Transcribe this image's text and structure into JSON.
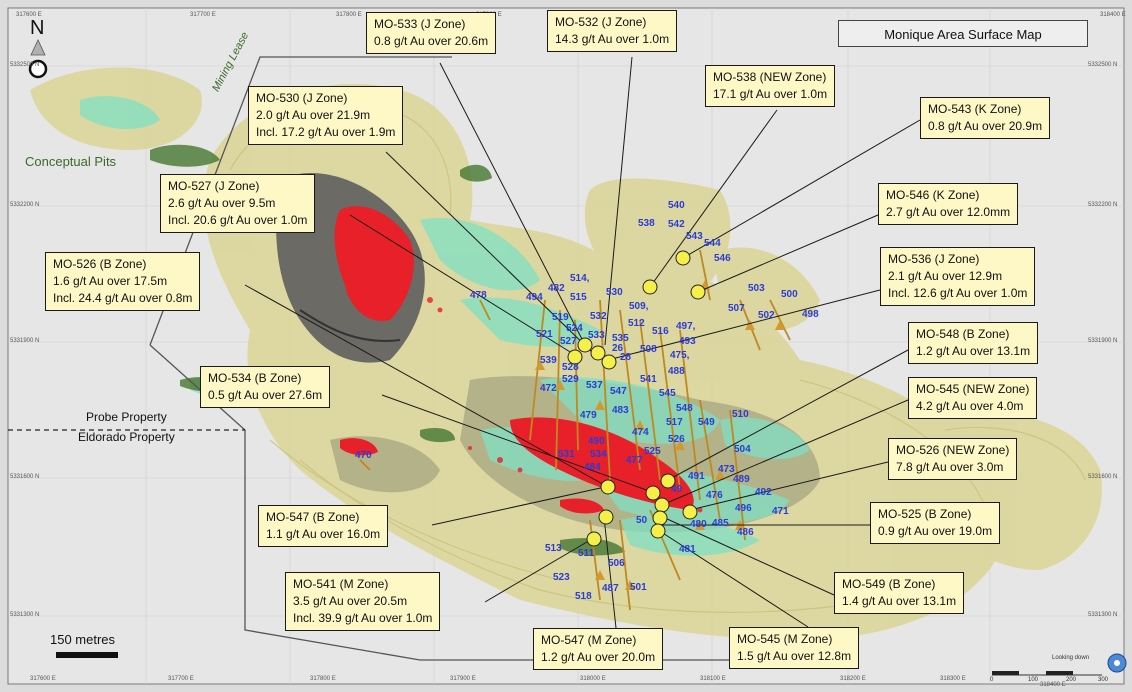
{
  "title": "Monique Area Surface Map",
  "north_label": "N",
  "scale_bar_label": "150 metres",
  "map_labels": {
    "conceptual_pits": "Conceptual Pits",
    "mining_lease": "Mining Lease",
    "probe_property": "Probe Property",
    "eldorado_property": "Eldorado Property"
  },
  "looking_down": {
    "label": "Looking down",
    "scale_ticks": [
      "0",
      "100",
      "200",
      "300"
    ]
  },
  "grid_coordinates": {
    "top_eastings": [
      "317600 E",
      "317700 E",
      "317800 E",
      "317900 E",
      "318000 E",
      "318100 E",
      "318200 E",
      "318300 E",
      "318400 E"
    ],
    "bottom_eastings": [
      "317600 E",
      "317700 E",
      "317800 E",
      "317900 E",
      "318000 E",
      "318100 E",
      "318200 E",
      "318300 E",
      "318400 E"
    ],
    "left_northings": [
      "5332500 N",
      "5332200 N",
      "5331900 N",
      "5331600 N",
      "5331300 N"
    ],
    "right_northings": [
      "5332500 N",
      "5332200 N",
      "5331900 N",
      "5331600 N",
      "5331300 N"
    ]
  },
  "callouts": [
    {
      "id": "mo-533-j",
      "lines": [
        "MO-533 (J Zone)",
        "0.8 g/t Au over 20.6m"
      ]
    },
    {
      "id": "mo-532-j",
      "lines": [
        "MO-532 (J Zone)",
        "14.3 g/t Au over 1.0m"
      ]
    },
    {
      "id": "mo-538-new",
      "lines": [
        "MO-538 (NEW Zone)",
        "17.1 g/t Au over 1.0m"
      ]
    },
    {
      "id": "mo-543-k",
      "lines": [
        "MO-543 (K Zone)",
        "0.8 g/t Au over 20.9m"
      ]
    },
    {
      "id": "mo-530-j",
      "lines": [
        "MO-530 (J Zone)",
        "2.0 g/t Au over 21.9m",
        "Incl. 17.2 g/t Au over 1.9m"
      ]
    },
    {
      "id": "mo-527-j",
      "lines": [
        "MO-527 (J Zone)",
        "2.6 g/t Au over 9.5m",
        "Incl. 20.6 g/t Au over 1.0m"
      ]
    },
    {
      "id": "mo-546-k",
      "lines": [
        "MO-546 (K Zone)",
        "2.7 g/t Au over 12.0mm"
      ]
    },
    {
      "id": "mo-526-b",
      "lines": [
        "MO-526 (B Zone)",
        "1.6 g/t Au over 17.5m",
        "Incl. 24.4 g/t Au over 0.8m"
      ]
    },
    {
      "id": "mo-536-j",
      "lines": [
        "MO-536 (J Zone)",
        "2.1 g/t Au over 12.9m",
        "Incl. 12.6 g/t Au over 1.0m"
      ]
    },
    {
      "id": "mo-548-b",
      "lines": [
        "MO-548 (B  Zone)",
        "1.2 g/t Au over 13.1m"
      ]
    },
    {
      "id": "mo-534-b",
      "lines": [
        "MO-534 (B Zone)",
        "0.5 g/t Au over 27.6m"
      ]
    },
    {
      "id": "mo-545-new",
      "lines": [
        "MO-545 (NEW Zone)",
        "4.2 g/t Au over 4.0m"
      ]
    },
    {
      "id": "mo-526-new",
      "lines": [
        "MO-526 (NEW Zone)",
        "7.8 g/t Au over 3.0m"
      ]
    },
    {
      "id": "mo-547-b",
      "lines": [
        "MO-547 (B Zone)",
        "1.1 g/t Au over 16.0m"
      ]
    },
    {
      "id": "mo-525-b",
      "lines": [
        "MO-525 (B  Zone)",
        "0.9 g/t Au over 19.0m"
      ]
    },
    {
      "id": "mo-541-m",
      "lines": [
        "MO-541 (M Zone)",
        "3.5 g/t Au over 20.5m",
        "Incl. 39.9 g/t Au over 1.0m"
      ]
    },
    {
      "id": "mo-549-b",
      "lines": [
        "MO-549 (B Zone)",
        "1.4 g/t Au over 13.1m"
      ]
    },
    {
      "id": "mo-547-m",
      "lines": [
        "MO-547 (M Zone)",
        "1.2 g/t Au over 20.0m"
      ]
    },
    {
      "id": "mo-545-m",
      "lines": [
        "MO-545 (M Zone)",
        "1.5 g/t Au over 12.8m"
      ]
    }
  ],
  "drill_hole_labels": [
    "540",
    "538",
    "542",
    "543",
    "544",
    "546",
    "503",
    "500",
    "507",
    "502",
    "498",
    "514,",
    "482",
    "530",
    "515",
    "494",
    "509,",
    "532",
    "519",
    "512",
    "497,",
    "524",
    "521",
    "527",
    "533",
    "516",
    "535",
    "493",
    "26",
    "28",
    "508",
    "475,",
    "539",
    "528",
    "488",
    "529",
    "537",
    "541",
    "547",
    "545",
    "472",
    "548",
    "483",
    "479",
    "517",
    "510",
    "549",
    "474",
    "526",
    "490",
    "534",
    "531",
    "525",
    "477",
    "504",
    "484",
    "470",
    "473",
    "491",
    "489",
    "476",
    "492",
    "496",
    "471",
    "480",
    "485",
    "486",
    "50",
    "481",
    "513",
    "511",
    "506",
    "523",
    "487",
    "501",
    "518",
    "478",
    "49"
  ],
  "colors": {
    "callout_fill": "#fdf8c6",
    "drill_label": "#2a3bd6",
    "intercept_marker": "#f5ef4a",
    "high_grade": "#e8202a",
    "pit_outline": "#d9d38a"
  }
}
